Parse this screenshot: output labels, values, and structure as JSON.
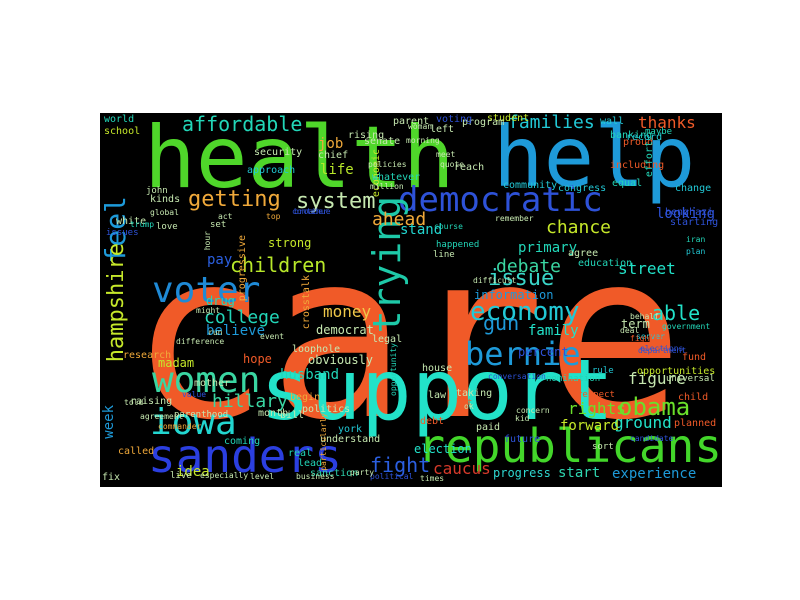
{
  "words": [
    {
      "text": "care",
      "color": "#f05a28",
      "rotated": false
    },
    {
      "text": "health",
      "color": "#4fd62a",
      "rotated": false
    },
    {
      "text": "help",
      "color": "#1e9ad9",
      "rotated": false
    },
    {
      "text": "support",
      "color": "#22e2c9",
      "rotated": false
    },
    {
      "text": "republicans",
      "color": "#43d62a",
      "rotated": false
    },
    {
      "text": "sanders",
      "color": "#2b3fe0",
      "rotated": false
    },
    {
      "text": "democratic",
      "color": "#2e52d8",
      "rotated": false
    },
    {
      "text": "voter",
      "color": "#1f8ad6",
      "rotated": false
    },
    {
      "text": "women",
      "color": "#3ad6a2",
      "rotated": false
    },
    {
      "text": "iowa",
      "color": "#22d6d0",
      "rotated": false
    },
    {
      "text": "bernie",
      "color": "#1e9ad9",
      "rotated": false
    },
    {
      "text": "economy",
      "color": "#22c9d6",
      "rotated": false
    },
    {
      "text": "trying",
      "color": "#1ec9a8",
      "rotated": true
    },
    {
      "text": "feel",
      "color": "#1e9ad9",
      "rotated": true
    },
    {
      "text": "hampshire",
      "color": "#c6e82a",
      "rotated": true
    },
    {
      "text": "obama",
      "color": "#6adf2a",
      "rotated": false
    },
    {
      "text": "getting",
      "color": "#f0a93a",
      "rotated": false
    },
    {
      "text": "affordable",
      "color": "#22d6b8",
      "rotated": false
    },
    {
      "text": "system",
      "color": "#c6e8b0",
      "rotated": false
    },
    {
      "text": "children",
      "color": "#b8e82a",
      "rotated": false
    },
    {
      "text": "issue",
      "color": "#3ad6c9",
      "rotated": false
    },
    {
      "text": "college",
      "color": "#22d6b8",
      "rotated": false
    },
    {
      "text": "debate",
      "color": "#3ad6a2",
      "rotated": false
    },
    {
      "text": "able",
      "color": "#22e2c9",
      "rotated": false
    },
    {
      "text": "gun",
      "color": "#1e9ad9",
      "rotated": false
    },
    {
      "text": "families",
      "color": "#22c9d6",
      "rotated": false
    },
    {
      "text": "hillary",
      "color": "#3ad6a2",
      "rotated": false
    },
    {
      "text": "ahead",
      "color": "#f0a93a",
      "rotated": false
    },
    {
      "text": "chance",
      "color": "#c6e82a",
      "rotated": false
    },
    {
      "text": "fight",
      "color": "#2b5fe0",
      "rotated": false
    },
    {
      "text": "caucus",
      "color": "#d63a2a",
      "rotated": false
    },
    {
      "text": "money",
      "color": "#f0c94a",
      "rotated": false
    },
    {
      "text": "street",
      "color": "#22e2c9",
      "rotated": false
    },
    {
      "text": "thanks",
      "color": "#f05a28",
      "rotated": false
    },
    {
      "text": "figure",
      "color": "#c6e8b0",
      "rotated": false
    },
    {
      "text": "ground",
      "color": "#22e2c9",
      "rotated": false
    },
    {
      "text": "rights",
      "color": "#6adf2a",
      "rotated": false
    },
    {
      "text": "forward",
      "color": "#c6e82a",
      "rotated": false
    },
    {
      "text": "start",
      "color": "#2ed6b0",
      "rotated": false
    },
    {
      "text": "experience",
      "color": "#1e9ad9",
      "rotated": false
    },
    {
      "text": "progress",
      "color": "#2ed6d0",
      "rotated": false
    },
    {
      "text": "husband",
      "color": "#22d6b8",
      "rotated": false
    },
    {
      "text": "pay",
      "color": "#2b5fe0",
      "rotated": false
    },
    {
      "text": "job",
      "color": "#f0a93a",
      "rotated": false
    },
    {
      "text": "life",
      "color": "#b8e82a",
      "rotated": false
    },
    {
      "text": "stand",
      "color": "#22d6d0",
      "rotated": false
    },
    {
      "text": "information",
      "color": "#1e9ad9",
      "rotated": false
    },
    {
      "text": "family",
      "color": "#22e2c9",
      "rotated": false
    },
    {
      "text": "percent",
      "color": "#2e52d8",
      "rotated": false
    },
    {
      "text": "term",
      "color": "#c6e8b0",
      "rotated": false
    },
    {
      "text": "primary",
      "color": "#22d6b8",
      "rotated": false
    },
    {
      "text": "looking",
      "color": "#2e52d8",
      "rotated": false
    },
    {
      "text": "believe",
      "color": "#1e9ad9",
      "rotated": false
    },
    {
      "text": "madam",
      "color": "#c6e82a",
      "rotated": false
    },
    {
      "text": "week",
      "color": "#1e9ad9",
      "rotated": true
    },
    {
      "text": "idea",
      "color": "#c6e82a",
      "rotated": false
    },
    {
      "text": "obviously",
      "color": "#c6e8b0",
      "rotated": false
    },
    {
      "text": "democrat",
      "color": "#c6e8b0",
      "rotated": false
    },
    {
      "text": "community",
      "color": "#22c9d6",
      "rotated": false
    },
    {
      "text": "house",
      "color": "#c6e8b0",
      "rotated": false
    },
    {
      "text": "hope",
      "color": "#f05a28",
      "rotated": false
    },
    {
      "text": "strong",
      "color": "#c6e82a",
      "rotated": false
    },
    {
      "text": "drug",
      "color": "#22d6b8",
      "rotated": false
    },
    {
      "text": "world",
      "color": "#22d6b8",
      "rotated": false
    },
    {
      "text": "school",
      "color": "#c6e82a",
      "rotated": false
    },
    {
      "text": "congress",
      "color": "#22c9d6",
      "rotated": false
    },
    {
      "text": "student",
      "color": "#c6e82a",
      "rotated": false
    },
    {
      "text": "proud",
      "color": "#f05a28",
      "rotated": false
    },
    {
      "text": "security",
      "color": "#c6e8b0",
      "rotated": false
    },
    {
      "text": "approach",
      "color": "#22c9d6",
      "rotated": false
    },
    {
      "text": "including",
      "color": "#f05a28",
      "rotated": false
    },
    {
      "text": "equal",
      "color": "#22d6b8",
      "rotated": false
    },
    {
      "text": "change",
      "color": "#22c9d6",
      "rotated": false
    },
    {
      "text": "benghazi",
      "color": "#2e52d8",
      "rotated": false
    },
    {
      "text": "starting",
      "color": "#2e52d8",
      "rotated": false
    },
    {
      "text": "iran",
      "color": "#22d6b8",
      "rotated": false
    },
    {
      "text": "plan",
      "color": "#22c9d6",
      "rotated": false
    },
    {
      "text": "government",
      "color": "#22d6b8",
      "rotated": false
    },
    {
      "text": "server",
      "color": "#22c9d6",
      "rotated": false
    },
    {
      "text": "deal",
      "color": "#c6e8b0",
      "rotated": false
    },
    {
      "text": "behalf",
      "color": "#c6e8b0",
      "rotated": false
    },
    {
      "text": "elections",
      "color": "#2e52d8",
      "rotated": false
    },
    {
      "text": "election",
      "color": "#22e2c9",
      "rotated": false
    },
    {
      "text": "understand",
      "color": "#c6e8b0",
      "rotated": false
    },
    {
      "text": "real",
      "color": "#22d6b8",
      "rotated": false
    },
    {
      "text": "york",
      "color": "#22c9d6",
      "rotated": false
    },
    {
      "text": "coming",
      "color": "#22d6b8",
      "rotated": false
    },
    {
      "text": "research",
      "color": "#f0a93a",
      "rotated": false
    },
    {
      "text": "called",
      "color": "#f0a93a",
      "rotated": false
    },
    {
      "text": "lead",
      "color": "#22d6b8",
      "rotated": false
    },
    {
      "text": "sanction",
      "color": "#2ed6b0",
      "rotated": false
    },
    {
      "text": "political",
      "color": "#2e52d8",
      "rotated": false
    },
    {
      "text": "fund",
      "color": "#f05a28",
      "rotated": false
    },
    {
      "text": "child",
      "color": "#f05a28",
      "rotated": false
    },
    {
      "text": "planned",
      "color": "#f05a28",
      "rotated": false
    },
    {
      "text": "future",
      "color": "#2e52d8",
      "rotated": false
    },
    {
      "text": "candidate",
      "color": "#2e52d8",
      "rotated": false
    },
    {
      "text": "opportunities",
      "color": "#c6e82a",
      "rotated": false
    },
    {
      "text": "universal",
      "color": "#c6e8b0",
      "rotated": false
    },
    {
      "text": "rule",
      "color": "#22c9d6",
      "rotated": false
    },
    {
      "text": "respect",
      "color": "#f05a28",
      "rotated": false
    },
    {
      "text": "nomination",
      "color": "#22d6b8",
      "rotated": false
    },
    {
      "text": "conversation",
      "color": "#2e52d8",
      "rotated": false
    },
    {
      "text": "agree",
      "color": "#c6e8b0",
      "rotated": false
    },
    {
      "text": "education",
      "color": "#22d6b8",
      "rotated": false
    },
    {
      "text": "fighting",
      "color": "#f05a28",
      "rotated": false
    },
    {
      "text": "department",
      "color": "#2e52d8",
      "rotated": false
    },
    {
      "text": "wall",
      "color": "#22c9d6",
      "rotated": false
    },
    {
      "text": "banking",
      "color": "#22d6b8",
      "rotated": false
    },
    {
      "text": "maybe",
      "color": "#22d6b8",
      "rotated": false
    },
    {
      "text": "effort",
      "color": "#22d6b8",
      "rotated": true
    },
    {
      "text": "record",
      "color": "#22c9d6",
      "rotated": false
    },
    {
      "text": "program",
      "color": "#c6e8b0",
      "rotated": false
    },
    {
      "text": "voting",
      "color": "#2e52d8",
      "rotated": false
    },
    {
      "text": "left",
      "color": "#c6e8b0",
      "rotated": false
    },
    {
      "text": "parent",
      "color": "#c6e8b0",
      "rotated": false
    },
    {
      "text": "woman",
      "color": "#c6e8b0",
      "rotated": false
    },
    {
      "text": "morning",
      "color": "#c6e8b0",
      "rotated": false
    },
    {
      "text": "meet",
      "color": "#c6e8b0",
      "rotated": false
    },
    {
      "text": "quote",
      "color": "#c6e8b0",
      "rotated": false
    },
    {
      "text": "reach",
      "color": "#c6e8b0",
      "rotated": false
    },
    {
      "text": "economic",
      "color": "#c6e82a",
      "rotated": true
    },
    {
      "text": "chief",
      "color": "#c6e8b0",
      "rotated": false
    },
    {
      "text": "rising",
      "color": "#c6e8b0",
      "rotated": false
    },
    {
      "text": "whatever",
      "color": "#22d6b8",
      "rotated": false
    },
    {
      "text": "policies",
      "color": "#c6e8b0",
      "rotated": false
    },
    {
      "text": "million",
      "color": "#c6e8b0",
      "rotated": false
    },
    {
      "text": "senate",
      "color": "#c6e8b0",
      "rotated": false
    },
    {
      "text": "top",
      "color": "#f0a93a",
      "rotated": false
    },
    {
      "text": "continue",
      "color": "#2e52d8",
      "rotated": false
    },
    {
      "text": "broader",
      "color": "#2e52d8",
      "rotated": false
    },
    {
      "text": "course",
      "color": "#22d6b8",
      "rotated": false
    },
    {
      "text": "remember",
      "color": "#c6e8b0",
      "rotated": false
    },
    {
      "text": "crosstalk",
      "color": "#f0a93a",
      "rotated": true
    },
    {
      "text": "progressive",
      "color": "#f0a93a",
      "rotated": true
    },
    {
      "text": "line",
      "color": "#c6e8b0",
      "rotated": false
    },
    {
      "text": "happened",
      "color": "#22d6b8",
      "rotated": false
    },
    {
      "text": "difficult",
      "color": "#c6e8b0",
      "rotated": false
    },
    {
      "text": "legal",
      "color": "#c6e8b0",
      "rotated": false
    },
    {
      "text": "opportunity",
      "color": "#22d6b8",
      "rotated": true
    },
    {
      "text": "paid",
      "color": "#c6e8b0",
      "rotated": false
    },
    {
      "text": "debt",
      "color": "#f05a28",
      "rotated": false
    },
    {
      "text": "bit",
      "color": "#f05a28",
      "rotated": false
    },
    {
      "text": "ok",
      "color": "#c6e8b0",
      "rotated": false
    },
    {
      "text": "law",
      "color": "#c6e8b0",
      "rotated": false
    },
    {
      "text": "taking",
      "color": "#c6e8b0",
      "rotated": false
    },
    {
      "text": "concern",
      "color": "#c6e8b0",
      "rotated": false
    },
    {
      "text": "kid",
      "color": "#c6e8b0",
      "rotated": false
    },
    {
      "text": "sort",
      "color": "#c6e8b0",
      "rotated": false
    },
    {
      "text": "run",
      "color": "#c6e8b0",
      "rotated": false
    },
    {
      "text": "loophole",
      "color": "#c6e8b0",
      "rotated": false
    },
    {
      "text": "event",
      "color": "#c6e8b0",
      "rotated": false
    },
    {
      "text": "difference",
      "color": "#c6e8b0",
      "rotated": false
    },
    {
      "text": "begin",
      "color": "#f0a93a",
      "rotated": false
    },
    {
      "text": "bill",
      "color": "#c6e8b0",
      "rotated": false
    },
    {
      "text": "politics",
      "color": "#c6e8b0",
      "rotated": false
    },
    {
      "text": "particularly",
      "color": "#f0a93a",
      "rotated": true
    },
    {
      "text": "month",
      "color": "#c6e8b0",
      "rotated": false
    },
    {
      "text": "mother",
      "color": "#c6e8b0",
      "rotated": false
    },
    {
      "text": "told",
      "color": "#c6e8b0",
      "rotated": false
    },
    {
      "text": "value",
      "color": "#2e52d8",
      "rotated": false
    },
    {
      "text": "raising",
      "color": "#c6e8b0",
      "rotated": false
    },
    {
      "text": "agreement",
      "color": "#c6e8b0",
      "rotated": false
    },
    {
      "text": "parenthood",
      "color": "#c6e8b0",
      "rotated": false
    },
    {
      "text": "commander",
      "color": "#f0a93a",
      "rotated": false
    },
    {
      "text": "fix",
      "color": "#c6e8b0",
      "rotated": false
    },
    {
      "text": "live",
      "color": "#c6e8b0",
      "rotated": false
    },
    {
      "text": "especially",
      "color": "#c6e8b0",
      "rotated": false
    },
    {
      "text": "level",
      "color": "#c6e8b0",
      "rotated": false
    },
    {
      "text": "business",
      "color": "#c6e8b0",
      "rotated": false
    },
    {
      "text": "times",
      "color": "#c6e8b0",
      "rotated": false
    },
    {
      "text": "party",
      "color": "#c6e8b0",
      "rotated": false
    },
    {
      "text": "might",
      "color": "#c6e8b0",
      "rotated": false
    },
    {
      "text": "act",
      "color": "#c6e8b0",
      "rotated": false
    },
    {
      "text": "set",
      "color": "#c6e8b0",
      "rotated": false
    },
    {
      "text": "hour",
      "color": "#c6e8b0",
      "rotated": true
    },
    {
      "text": "kinds",
      "color": "#c6e8b0",
      "rotated": false
    },
    {
      "text": "love",
      "color": "#c6e8b0",
      "rotated": false
    },
    {
      "text": "john",
      "color": "#c6e8b0",
      "rotated": false
    },
    {
      "text": "white",
      "color": "#c6e8b0",
      "rotated": false
    },
    {
      "text": "issues",
      "color": "#2e52d8",
      "rotated": false
    },
    {
      "text": "trump",
      "color": "#22d6b8",
      "rotated": false
    },
    {
      "text": "global",
      "color": "#c6e8b0",
      "rotated": false
    }
  ]
}
